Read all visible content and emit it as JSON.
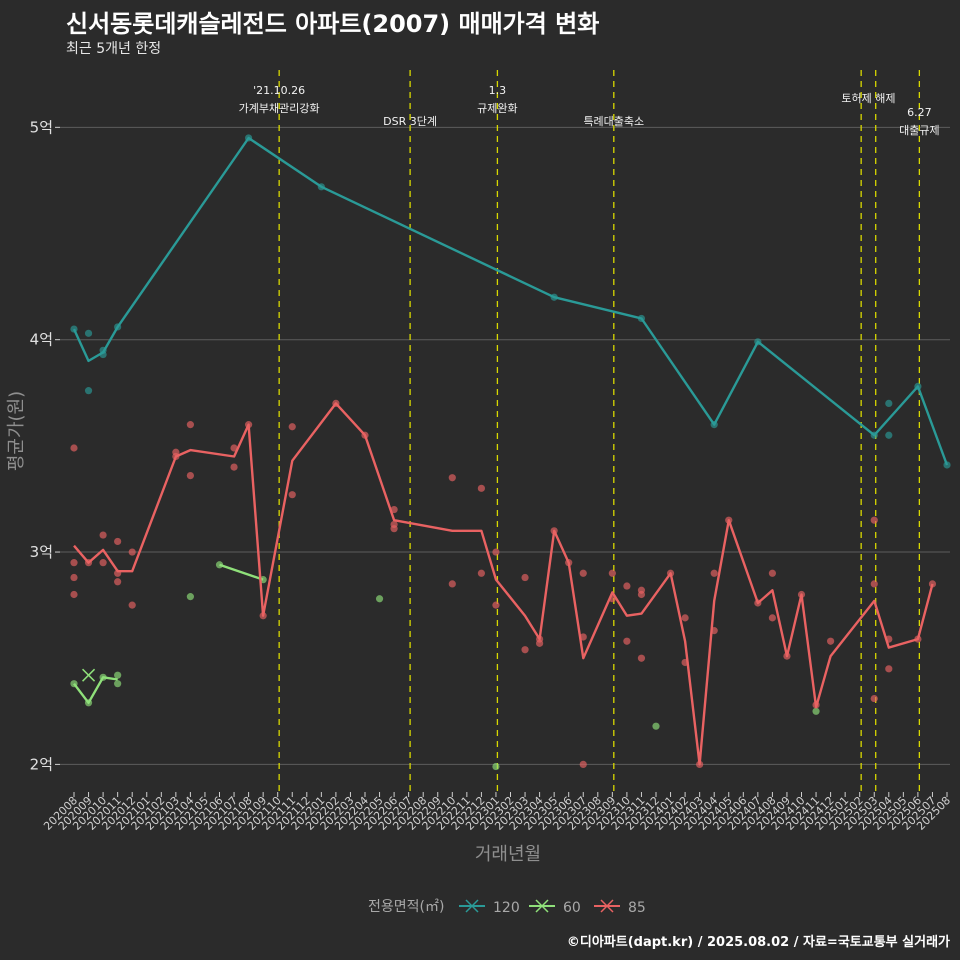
{
  "title": "신서동롯데캐슬레전드 아파트(2007) 매매가격 변화",
  "subtitle": "최근 5개년 한정",
  "caption": "©디아파트(dapt.kr) / 2025.08.02 / 자료=국토교통부 실거래가",
  "colors": {
    "background": "#2b2b2b",
    "grid": "#5c5c5c",
    "event_line": "#d8d800",
    "s120": "#2a9a97",
    "s60": "#8fe07a",
    "s85": "#e96262"
  },
  "chart_data": {
    "type": "line",
    "xlabel": "거래년월",
    "ylabel": "평균가(원)",
    "x_categories": [
      "202008",
      "202009",
      "202010",
      "202011",
      "202012",
      "202101",
      "202102",
      "202103",
      "202104",
      "202105",
      "202106",
      "202107",
      "202108",
      "202109",
      "202110",
      "202111",
      "202112",
      "202201",
      "202202",
      "202203",
      "202204",
      "202205",
      "202206",
      "202207",
      "202208",
      "202209",
      "202210",
      "202211",
      "202212",
      "202301",
      "202302",
      "202303",
      "202304",
      "202305",
      "202306",
      "202307",
      "202308",
      "202309",
      "202310",
      "202311",
      "202312",
      "202401",
      "202402",
      "202403",
      "202404",
      "202405",
      "202406",
      "202407",
      "202408",
      "202409",
      "202410",
      "202411",
      "202412",
      "202501",
      "202502",
      "202503",
      "202504",
      "202505",
      "202506",
      "202507",
      "202508"
    ],
    "y_ticks": [
      {
        "value": 2.0,
        "label": "2억"
      },
      {
        "value": 3.0,
        "label": "3억"
      },
      {
        "value": 4.0,
        "label": "4억"
      },
      {
        "value": 5.0,
        "label": "5억"
      }
    ],
    "ylim": [
      1.87,
      5.27
    ],
    "legend": {
      "title": "전용면적(㎡)",
      "position": "bottom",
      "items": [
        "120",
        "60",
        "85"
      ]
    },
    "events": [
      {
        "x": 14.1,
        "lines": [
          "'21.10.26",
          "가계부채관리강화"
        ],
        "row": "top"
      },
      {
        "x": 23.1,
        "lines": [
          "DSR 3단계"
        ],
        "row": "bottom"
      },
      {
        "x": 29.1,
        "lines": [
          "1.3",
          "규제완화"
        ],
        "row": "top"
      },
      {
        "x": 37.1,
        "lines": [
          "특례대출축소"
        ],
        "row": "bottom"
      },
      {
        "x": 54.1,
        "lines": [],
        "row": "top"
      },
      {
        "x": 55.1,
        "lines": [
          "토허제 해제"
        ],
        "row": "top",
        "anchor_x": 54.6
      },
      {
        "x": 58.1,
        "lines": [
          "6.27",
          "대출규제"
        ],
        "row": "mid"
      }
    ],
    "series": [
      {
        "name": "120",
        "line": [
          [
            0,
            4.05
          ],
          [
            1,
            3.9
          ],
          [
            2,
            3.94
          ],
          [
            3,
            4.06
          ],
          [
            12,
            4.95
          ],
          [
            17,
            4.72
          ],
          [
            33,
            4.2
          ],
          [
            39,
            4.1
          ],
          [
            44,
            3.6
          ],
          [
            47,
            3.99
          ],
          [
            55,
            3.55
          ],
          [
            58,
            3.78
          ],
          [
            60,
            3.41
          ]
        ],
        "points": [
          [
            0,
            4.05
          ],
          [
            1,
            4.03
          ],
          [
            1,
            3.76
          ],
          [
            2,
            3.93
          ],
          [
            2,
            3.95
          ],
          [
            3,
            4.06
          ],
          [
            12,
            4.95
          ],
          [
            17,
            4.72
          ],
          [
            33,
            4.2
          ],
          [
            39,
            4.1
          ],
          [
            44,
            3.6
          ],
          [
            47,
            3.99
          ],
          [
            55,
            3.55
          ],
          [
            56,
            3.7
          ],
          [
            56,
            3.55
          ],
          [
            58,
            3.78
          ],
          [
            60,
            3.41
          ]
        ]
      },
      {
        "name": "60",
        "line": [
          [
            0,
            2.38
          ],
          [
            1,
            2.29
          ],
          [
            2,
            2.41
          ],
          [
            3,
            2.4
          ]
        ],
        "line2": [
          [
            10,
            2.94
          ],
          [
            13,
            2.87
          ]
        ],
        "points": [
          [
            0,
            2.38
          ],
          [
            1,
            2.29
          ],
          [
            2,
            2.41
          ],
          [
            3,
            2.42
          ],
          [
            3,
            2.38
          ],
          [
            8,
            2.79
          ],
          [
            10,
            2.94
          ],
          [
            13,
            2.87
          ],
          [
            21,
            2.78
          ],
          [
            29,
            1.99
          ],
          [
            40,
            2.18
          ],
          [
            51,
            2.25
          ]
        ]
      },
      {
        "name": "85",
        "line": [
          [
            0,
            3.03
          ],
          [
            1,
            2.95
          ],
          [
            2,
            3.01
          ],
          [
            3,
            2.91
          ],
          [
            4,
            2.91
          ],
          [
            7,
            3.45
          ],
          [
            8,
            3.48
          ],
          [
            11,
            3.45
          ],
          [
            12,
            3.6
          ],
          [
            13,
            2.7
          ],
          [
            15,
            3.43
          ],
          [
            18,
            3.7
          ],
          [
            20,
            3.55
          ],
          [
            22,
            3.15
          ],
          [
            26,
            3.1
          ],
          [
            28,
            3.1
          ],
          [
            29,
            2.87
          ],
          [
            31,
            2.7
          ],
          [
            32,
            2.59
          ],
          [
            33,
            3.1
          ],
          [
            34,
            2.95
          ],
          [
            35,
            2.5
          ],
          [
            37,
            2.81
          ],
          [
            38,
            2.7
          ],
          [
            39,
            2.71
          ],
          [
            41,
            2.9
          ],
          [
            42,
            2.58
          ],
          [
            43,
            2.0
          ],
          [
            44,
            2.77
          ],
          [
            45,
            3.15
          ],
          [
            47,
            2.76
          ],
          [
            48,
            2.82
          ],
          [
            49,
            2.51
          ],
          [
            50,
            2.8
          ],
          [
            51,
            2.27
          ],
          [
            52,
            2.51
          ],
          [
            55,
            2.77
          ],
          [
            56,
            2.55
          ],
          [
            58,
            2.59
          ],
          [
            59,
            2.85
          ]
        ],
        "points": [
          [
            0,
            3.49
          ],
          [
            0,
            2.95
          ],
          [
            0,
            2.88
          ],
          [
            0,
            2.8
          ],
          [
            1,
            2.95
          ],
          [
            2,
            3.08
          ],
          [
            2,
            2.95
          ],
          [
            3,
            3.05
          ],
          [
            3,
            2.9
          ],
          [
            3,
            2.86
          ],
          [
            4,
            3.0
          ],
          [
            4,
            2.75
          ],
          [
            7,
            3.47
          ],
          [
            7,
            3.45
          ],
          [
            8,
            3.6
          ],
          [
            8,
            3.36
          ],
          [
            11,
            3.49
          ],
          [
            11,
            3.4
          ],
          [
            12,
            3.6
          ],
          [
            13,
            2.7
          ],
          [
            15,
            3.59
          ],
          [
            15,
            3.27
          ],
          [
            18,
            3.7
          ],
          [
            20,
            3.55
          ],
          [
            22,
            3.2
          ],
          [
            22,
            3.13
          ],
          [
            22,
            3.11
          ],
          [
            26,
            3.35
          ],
          [
            26,
            2.85
          ],
          [
            28,
            3.3
          ],
          [
            28,
            2.9
          ],
          [
            29,
            3.0
          ],
          [
            29,
            2.75
          ],
          [
            31,
            2.88
          ],
          [
            31,
            2.54
          ],
          [
            32,
            2.59
          ],
          [
            32,
            2.57
          ],
          [
            33,
            3.1
          ],
          [
            34,
            2.95
          ],
          [
            35,
            2.9
          ],
          [
            35,
            2.6
          ],
          [
            35,
            2.0
          ],
          [
            37,
            2.9
          ],
          [
            37,
            2.78
          ],
          [
            38,
            2.84
          ],
          [
            38,
            2.58
          ],
          [
            39,
            2.82
          ],
          [
            39,
            2.8
          ],
          [
            39,
            2.5
          ],
          [
            41,
            2.9
          ],
          [
            42,
            2.69
          ],
          [
            42,
            2.48
          ],
          [
            43,
            2.0
          ],
          [
            44,
            2.9
          ],
          [
            44,
            2.63
          ],
          [
            45,
            3.15
          ],
          [
            47,
            2.76
          ],
          [
            48,
            2.9
          ],
          [
            48,
            2.69
          ],
          [
            49,
            2.51
          ],
          [
            50,
            2.8
          ],
          [
            51,
            2.28
          ],
          [
            52,
            2.58
          ],
          [
            55,
            3.15
          ],
          [
            55,
            2.85
          ],
          [
            55,
            2.31
          ],
          [
            56,
            2.59
          ],
          [
            56,
            2.45
          ],
          [
            58,
            2.59
          ],
          [
            59,
            2.85
          ]
        ]
      }
    ]
  }
}
